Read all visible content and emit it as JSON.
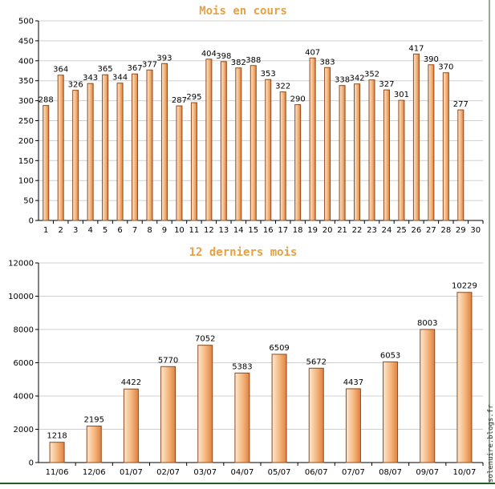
{
  "colors": {
    "frame": "#2a5a2a",
    "grid": "#d0d0d0",
    "bar_light": "#fde8d0",
    "bar_dark": "#e89050",
    "bar_edge": "#8a4a20",
    "title": "#e8a040"
  },
  "watermark": "solenuire.blogs.fr",
  "chart_data": [
    {
      "type": "bar",
      "title": "Mois en cours",
      "xlabel": "",
      "ylabel": "",
      "ylim": [
        0,
        500
      ],
      "yticks": [
        0,
        50,
        100,
        150,
        200,
        250,
        300,
        350,
        400,
        450,
        500
      ],
      "grid": true,
      "categories": [
        "1",
        "2",
        "3",
        "4",
        "5",
        "6",
        "7",
        "8",
        "9",
        "10",
        "11",
        "12",
        "13",
        "14",
        "15",
        "16",
        "17",
        "18",
        "19",
        "20",
        "21",
        "22",
        "23",
        "24",
        "25",
        "26",
        "27",
        "28",
        "29",
        "30"
      ],
      "values": [
        288,
        364,
        326,
        343,
        365,
        344,
        367,
        377,
        393,
        287,
        295,
        404,
        398,
        382,
        388,
        353,
        322,
        290,
        407,
        383,
        338,
        342,
        352,
        327,
        301,
        417,
        390,
        370,
        277,
        null
      ]
    },
    {
      "type": "bar",
      "title": "12 derniers mois",
      "xlabel": "",
      "ylabel": "",
      "ylim": [
        0,
        12000
      ],
      "yticks": [
        0,
        2000,
        4000,
        6000,
        8000,
        10000,
        12000
      ],
      "grid": true,
      "categories": [
        "11/06",
        "12/06",
        "01/07",
        "02/07",
        "03/07",
        "04/07",
        "05/07",
        "06/07",
        "07/07",
        "08/07",
        "09/07",
        "10/07"
      ],
      "values": [
        1218,
        2195,
        4422,
        5770,
        7052,
        5383,
        6509,
        5672,
        4437,
        6053,
        8003,
        10229
      ]
    }
  ]
}
